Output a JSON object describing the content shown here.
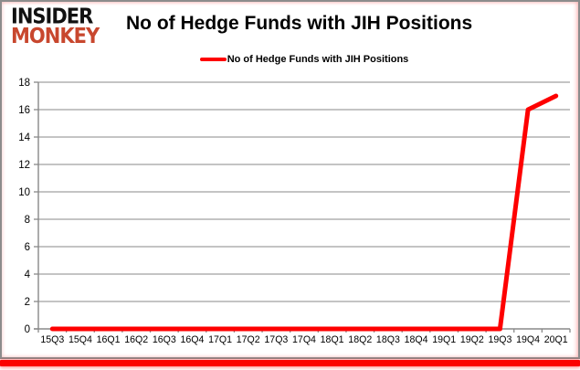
{
  "logo": {
    "line1": "INSIDER",
    "line2": "MONKEY"
  },
  "header": {
    "title": "No of Hedge Funds with JIH Positions"
  },
  "legend": {
    "label": "No of Hedge Funds with JIH Positions"
  },
  "colors": {
    "series": "#fe0000",
    "bottom_bar": "#fb0200",
    "logo_red": "#c8472e",
    "gridline": "#a0a0a0",
    "axis": "#898989",
    "tick_text": "#000000"
  },
  "chart_data": {
    "type": "line",
    "title": "No of Hedge Funds with JIH Positions",
    "categories": [
      "15Q3",
      "15Q4",
      "16Q1",
      "16Q2",
      "16Q3",
      "16Q4",
      "17Q1",
      "17Q2",
      "17Q3",
      "17Q4",
      "18Q1",
      "18Q2",
      "18Q3",
      "18Q4",
      "19Q1",
      "19Q2",
      "19Q3",
      "19Q4",
      "20Q1"
    ],
    "series": [
      {
        "name": "No of Hedge Funds with JIH Positions",
        "values": [
          0,
          0,
          0,
          0,
          0,
          0,
          0,
          0,
          0,
          0,
          0,
          0,
          0,
          0,
          0,
          0,
          0,
          16,
          17
        ],
        "color": "#fe0000"
      }
    ],
    "xlabel": "",
    "ylabel": "",
    "ylim": [
      0,
      18
    ],
    "ytick_step": 2,
    "grid": "horizontal",
    "legend_position": "top-center"
  }
}
